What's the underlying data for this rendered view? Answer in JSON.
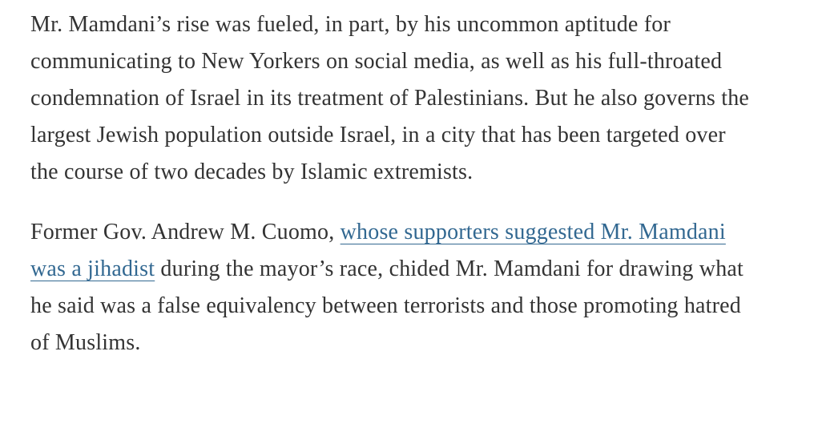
{
  "colors": {
    "background": "#ffffff",
    "text": "#333333",
    "link": "#326891"
  },
  "article": {
    "paragraph1": "Mr. Mamdani’s rise was fueled, in part, by his uncommon aptitude for communicating to New Yorkers on social media, as well as his full-throated condemnation of Israel in its treatment of Palestinians. But he also governs the largest Jewish population outside Israel, in a city that has been targeted over the course of two decades by Islamic extremists.",
    "paragraph2_before_link": "Former Gov. Andrew M. Cuomo, ",
    "paragraph2_link_text": "whose supporters suggested Mr. Mamdani was a jihadist",
    "paragraph2_after_link": " during the mayor’s race, chided Mr. Mamdani for drawing what he said was a false equivalency between terrorists and those promoting hatred of Muslims."
  }
}
